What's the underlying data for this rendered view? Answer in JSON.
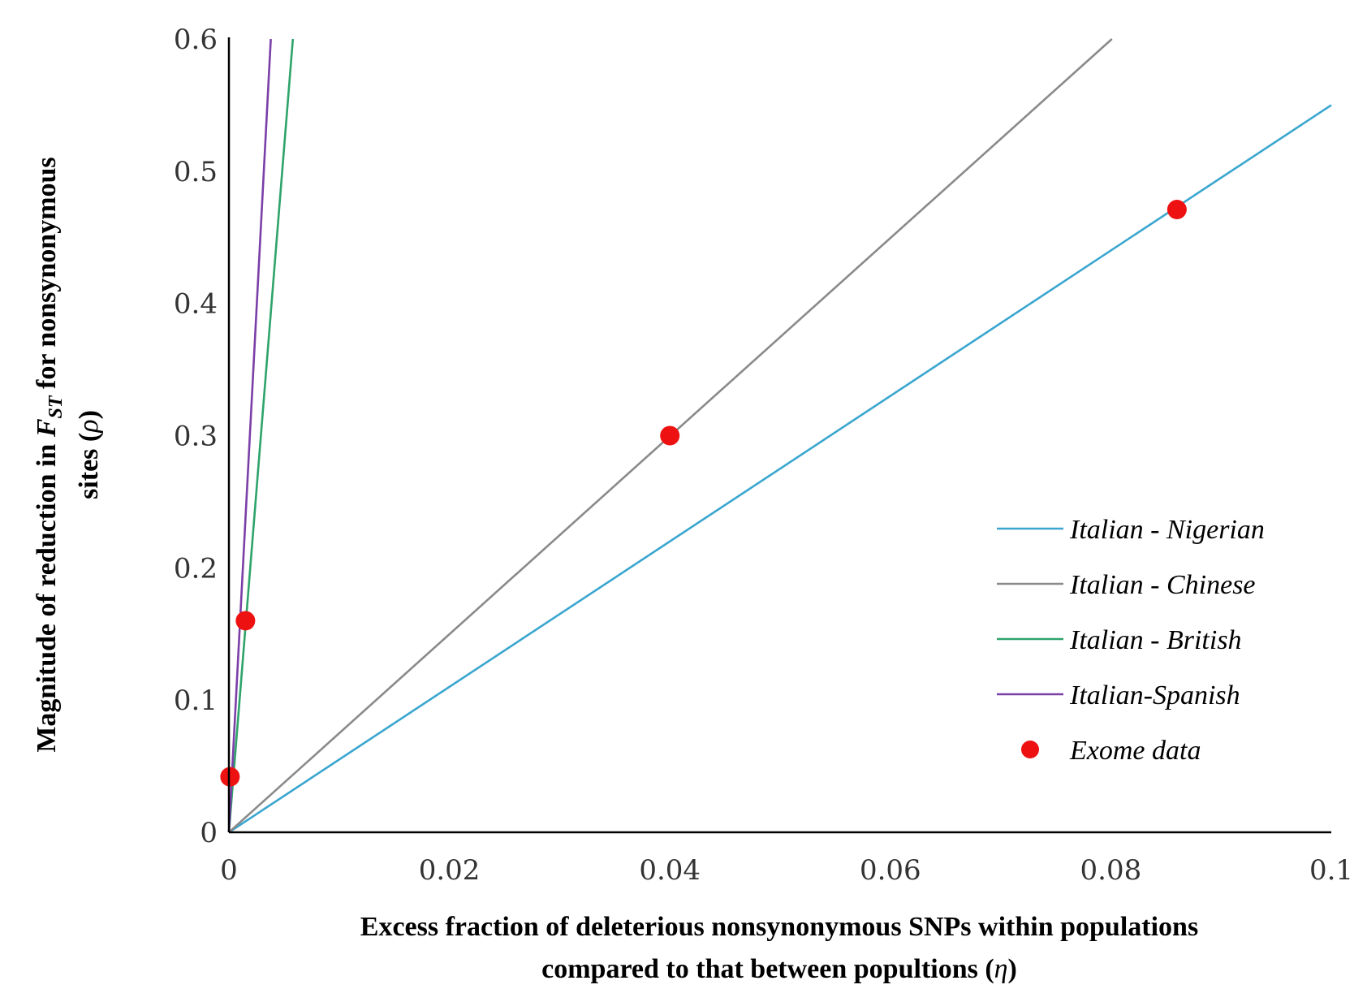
{
  "chart_data": {
    "type": "line",
    "title": "",
    "xlabel": {
      "line1": "Excess fraction of deleterious nonsynonymous SNPs within populations",
      "line2_text": "compared to that between popultions (",
      "line2_symbol": "η",
      "line2_end": ")"
    },
    "ylabel": {
      "line1_text": "Magnitude of reduction in ",
      "line1_F": "F",
      "line1_sub": "ST",
      "line1_end": " for nonsynonymous",
      "line2_text": "sites (",
      "line2_symbol": "ρ",
      "line2_end": ")"
    },
    "xlim": [
      0,
      0.1
    ],
    "ylim": [
      0,
      0.6
    ],
    "x_ticks": [
      {
        "value": 0,
        "label": "0"
      },
      {
        "value": 0.02,
        "label": "0.02"
      },
      {
        "value": 0.04,
        "label": "0.04"
      },
      {
        "value": 0.06,
        "label": "0.06"
      },
      {
        "value": 0.08,
        "label": "0.08"
      },
      {
        "value": 0.1,
        "label": "0.1"
      }
    ],
    "y_ticks": [
      {
        "value": 0,
        "label": "0"
      },
      {
        "value": 0.1,
        "label": "0.1"
      },
      {
        "value": 0.2,
        "label": "0.2"
      },
      {
        "value": 0.3,
        "label": "0.3"
      },
      {
        "value": 0.4,
        "label": "0.4"
      },
      {
        "value": 0.5,
        "label": "0.5"
      },
      {
        "value": 0.6,
        "label": "0.6"
      }
    ],
    "grid": false,
    "legend_position": "right",
    "series": [
      {
        "name": "Italian - Nigerian",
        "color": "#3aa6cf",
        "points": [
          [
            0,
            0
          ],
          [
            0.1,
            0.55
          ]
        ]
      },
      {
        "name": "Italian - Chinese",
        "color": "#8a8a8a",
        "points": [
          [
            0,
            0
          ],
          [
            0.0801,
            0.6
          ]
        ]
      },
      {
        "name": "Italian - British",
        "color": "#2ea36a",
        "points": [
          [
            0,
            0
          ],
          [
            0.0058,
            0.6
          ]
        ]
      },
      {
        "name": "Italian-Spanish",
        "color": "#7b3fa8",
        "points": [
          [
            0,
            0
          ],
          [
            0.0038,
            0.6
          ]
        ]
      }
    ],
    "scatter": {
      "name": "Exome data",
      "color": "#ee1111",
      "points": [
        [
          0.0001,
          0.042
        ],
        [
          0.0015,
          0.16
        ],
        [
          0.04,
          0.3
        ],
        [
          0.086,
          0.471
        ]
      ]
    }
  }
}
